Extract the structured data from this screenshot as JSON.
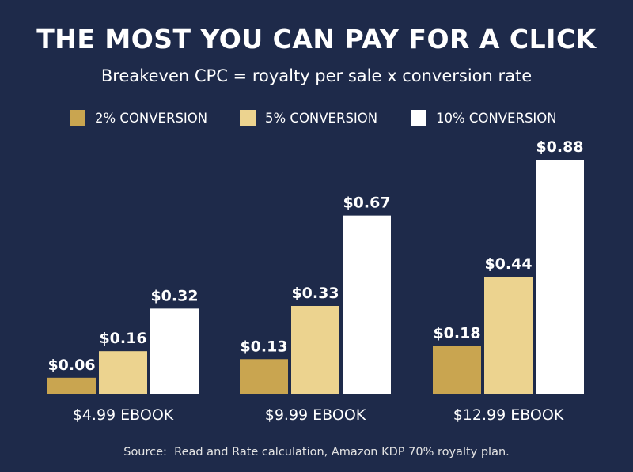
{
  "title": "THE MOST YOU CAN PAY FOR A CLICK",
  "subtitle": "Breakeven CPC = royalty per sale x conversion rate",
  "source": "Source:  Read and Rate calculation, Amazon KDP 70% royalty plan.",
  "colors": {
    "background": "#1e2a4a",
    "series": [
      "#c9a550",
      "#ecd38f",
      "#ffffff"
    ]
  },
  "chart_data": {
    "type": "bar",
    "title": "THE MOST YOU CAN PAY FOR A CLICK",
    "subtitle": "Breakeven CPC = royalty per sale x conversion rate",
    "categories": [
      "$4.99 EBOOK",
      "$9.99 EBOOK",
      "$12.99 EBOOK"
    ],
    "series": [
      {
        "name": "2% CONVERSION",
        "values": [
          0.06,
          0.13,
          0.18
        ],
        "labels": [
          "$0.06",
          "$0.13",
          "$0.18"
        ]
      },
      {
        "name": "5% CONVERSION",
        "values": [
          0.16,
          0.33,
          0.44
        ],
        "labels": [
          "$0.16",
          "$0.33",
          "$0.44"
        ]
      },
      {
        "name": "10% CONVERSION",
        "values": [
          0.32,
          0.67,
          0.88
        ],
        "labels": [
          "$0.32",
          "$0.67",
          "$0.88"
        ]
      }
    ],
    "xlabel": "",
    "ylabel": "",
    "ylim": [
      0,
      0.88
    ],
    "grid": false,
    "legend": "top"
  }
}
